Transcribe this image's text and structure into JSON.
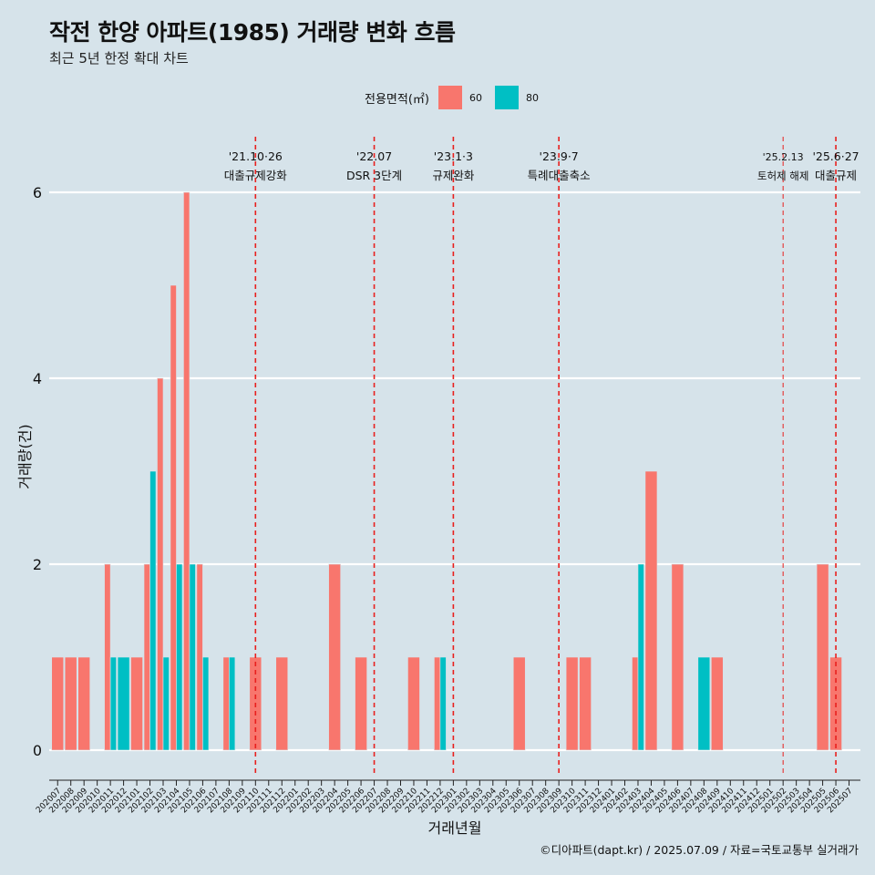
{
  "title": "작전 한양 아파트(1985) 거래량 변화 흐름",
  "subtitle": "최근 5년 한정 확대 차트",
  "caption": "©디아파트(dapt.kr) / 2025.07.09 / 자료=국토교통부 실거래가",
  "legend": {
    "title": "전용면적(㎡)",
    "items": [
      {
        "label": "60",
        "color": "#f8766d"
      },
      {
        "label": "80",
        "color": "#00bfc4"
      }
    ]
  },
  "chart_data": {
    "type": "bar",
    "xlabel": "거래년월",
    "ylabel": "거래량(건)",
    "ylim": [
      0,
      6
    ],
    "yticks": [
      0,
      2,
      4,
      6
    ],
    "grid": "horizontal",
    "legend_position": "top",
    "categories": [
      "202007",
      "202008",
      "202009",
      "202010",
      "202011",
      "202012",
      "202101",
      "202102",
      "202103",
      "202104",
      "202105",
      "202106",
      "202107",
      "202108",
      "202109",
      "202110",
      "202111",
      "202112",
      "202201",
      "202202",
      "202203",
      "202204",
      "202205",
      "202206",
      "202207",
      "202208",
      "202209",
      "202210",
      "202211",
      "202212",
      "202301",
      "202302",
      "202303",
      "202304",
      "202305",
      "202306",
      "202307",
      "202308",
      "202309",
      "202310",
      "202311",
      "202312",
      "202401",
      "202402",
      "202403",
      "202404",
      "202405",
      "202406",
      "202407",
      "202408",
      "202409",
      "202410",
      "202411",
      "202412",
      "202501",
      "202502",
      "202503",
      "202504",
      "202505",
      "202506",
      "202507"
    ],
    "series": [
      {
        "name": "60",
        "color": "#f8766d",
        "values": [
          1,
          1,
          1,
          0,
          2,
          0,
          1,
          2,
          4,
          5,
          6,
          2,
          0,
          1,
          0,
          1,
          0,
          1,
          0,
          0,
          0,
          2,
          0,
          1,
          0,
          0,
          0,
          1,
          0,
          1,
          0,
          0,
          0,
          0,
          0,
          1,
          0,
          0,
          0,
          1,
          1,
          0,
          0,
          0,
          1,
          3,
          0,
          2,
          0,
          0,
          1,
          0,
          0,
          0,
          0,
          0,
          0,
          0,
          2,
          1,
          0
        ]
      },
      {
        "name": "80",
        "color": "#00bfc4",
        "values": [
          0,
          0,
          0,
          0,
          1,
          1,
          0,
          3,
          1,
          2,
          2,
          1,
          0,
          1,
          0,
          0,
          0,
          0,
          0,
          0,
          0,
          0,
          0,
          0,
          0,
          0,
          0,
          0,
          0,
          1,
          0,
          0,
          0,
          0,
          0,
          0,
          0,
          0,
          0,
          0,
          0,
          0,
          0,
          0,
          2,
          0,
          0,
          0,
          0,
          1,
          0,
          0,
          0,
          0,
          0,
          0,
          0,
          0,
          0,
          0,
          0
        ]
      }
    ],
    "annotations": [
      {
        "category": "202110",
        "date": "'21.10·26",
        "label": "대출규제강화",
        "style": "dashed"
      },
      {
        "category": "202207",
        "date": "'22.07",
        "label": "DSR 3단계",
        "style": "dashed"
      },
      {
        "category": "202301",
        "date": "'23.1·3",
        "label": "규제완화",
        "style": "dashed"
      },
      {
        "category": "202309",
        "date": "'23.9·7",
        "label": "특례대출축소",
        "style": "dashed"
      },
      {
        "category": "202502",
        "date": "'25.2.13",
        "label": "토허제 해제",
        "style": "thin"
      },
      {
        "category": "202506",
        "date": "'25.6·27",
        "label": "대출규제",
        "style": "dashed"
      }
    ]
  }
}
